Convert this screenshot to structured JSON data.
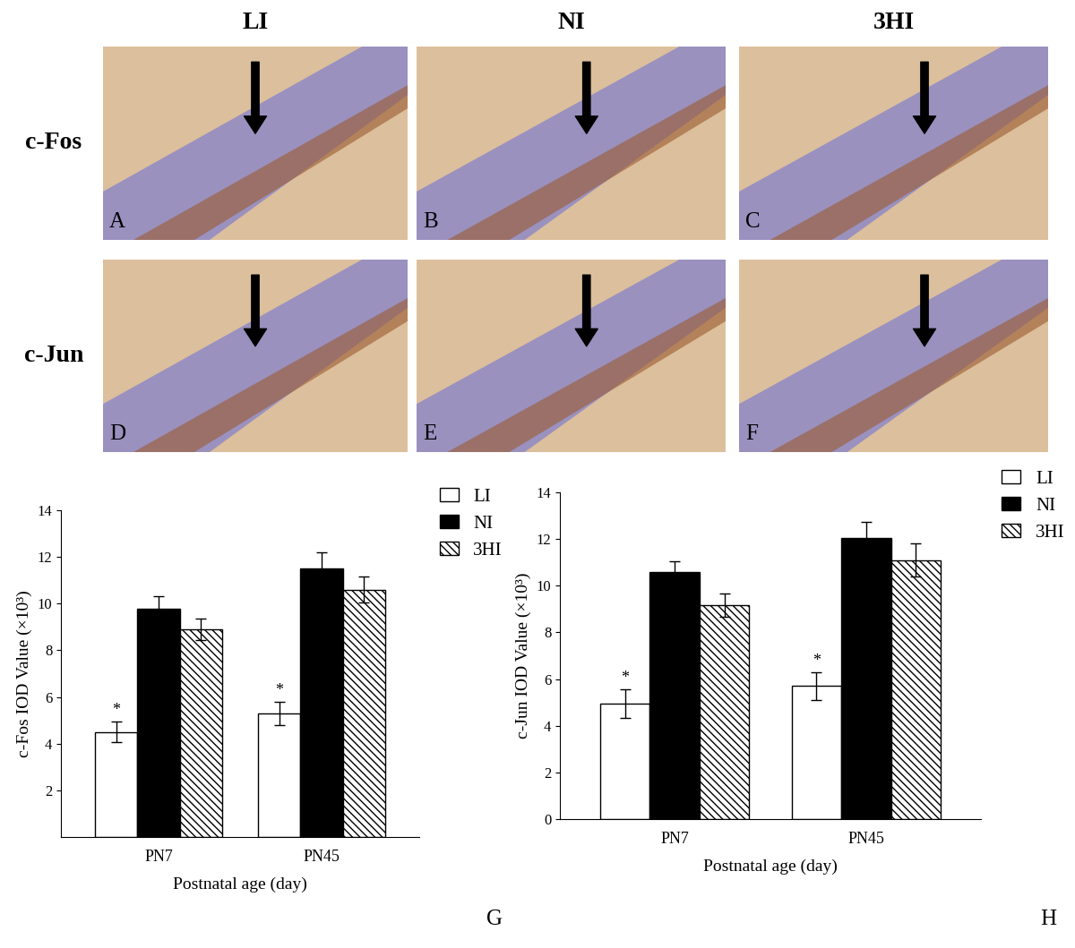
{
  "image_grid": {
    "columns": [
      "LI",
      "NI",
      "3HI"
    ],
    "rows": [
      "c-Fos",
      "c-Jun"
    ],
    "panel_labels": [
      [
        "A",
        "B",
        "C"
      ],
      [
        "D",
        "E",
        "F"
      ]
    ]
  },
  "chart_data": [
    {
      "type": "bar",
      "annotation": "G",
      "categories": [
        "PN7",
        "PN45"
      ],
      "x_label": "Postnatal age (day)",
      "y_label": "c-Fos IOD Value (×10³)",
      "ylim": [
        0,
        14
      ],
      "yticks": [
        2,
        4,
        6,
        8,
        10,
        12,
        14
      ],
      "legend": "upper left",
      "series": [
        {
          "name": "LI",
          "color": "#ffffff",
          "values": [
            4.5,
            5.3
          ],
          "errors": [
            0.45,
            0.5
          ],
          "significance": [
            "*",
            "*"
          ]
        },
        {
          "name": "NI",
          "color": "#000000",
          "values": [
            9.8,
            11.5
          ],
          "errors": [
            0.5,
            0.7
          ]
        },
        {
          "name": "3HI",
          "color": "#ffffff",
          "values": [
            8.9,
            10.6
          ],
          "errors": [
            0.45,
            0.55
          ]
        }
      ]
    },
    {
      "type": "bar",
      "annotation": "H",
      "categories": [
        "PN7",
        "PN45"
      ],
      "x_label": "Postnatal age (day)",
      "y_label": "c-Jun IOD Value (×10³)",
      "ylim": [
        0,
        14
      ],
      "yticks": [
        0,
        2,
        4,
        6,
        8,
        10,
        12,
        14
      ],
      "legend": "upper left",
      "series": [
        {
          "name": "LI",
          "color": "#ffffff",
          "values": [
            4.95,
            5.7
          ],
          "errors": [
            0.6,
            0.6
          ],
          "significance": [
            "*",
            "*"
          ]
        },
        {
          "name": "NI",
          "color": "#000000",
          "values": [
            10.6,
            12.05
          ],
          "errors": [
            0.45,
            0.7
          ]
        },
        {
          "name": "3HI",
          "color": "#ffffff",
          "values": [
            9.15,
            11.1
          ],
          "errors": [
            0.5,
            0.7
          ]
        }
      ]
    }
  ]
}
